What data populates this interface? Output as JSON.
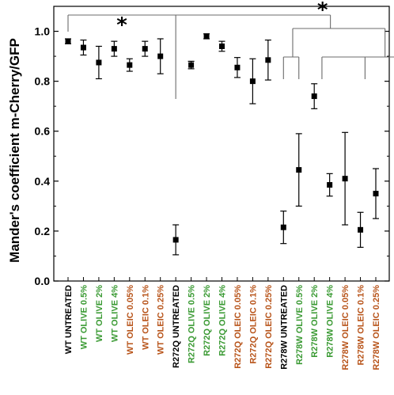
{
  "chart_data": {
    "type": "scatter",
    "ylabel": "Mander's coefficient m-Cherry/GFP",
    "ylim": [
      0,
      1.1
    ],
    "yticks": [
      "0.0",
      "0.2",
      "0.4",
      "0.6",
      "0.8",
      "1.0"
    ],
    "categories": [
      "WT UNTREATED",
      "WT OLIVE 0.5%",
      "WT OLIVE 2%",
      "WT OLIVE 4%",
      "WT OLEIC 0.05%",
      "WT OLEIC 0.1%",
      "WT OLEIC 0.25%",
      "R272Q UNTREATED",
      "R272Q OLIVE 0.5%",
      "R272Q OLIVE 2%",
      "R272Q OLIVE 4%",
      "R272Q OLEIC 0.05%",
      "R272Q OLEIC 0.1%",
      "R272Q OLEIC 0.25%",
      "R278W UNTREATED",
      "R278W OLIVE 0.5%",
      "R278W OLIVE 2%",
      "R278W OLIVE 4%",
      "R278W OLEIC 0.05%",
      "R278W OLEIC 0.1%",
      "R278W OLEIC 0.25%"
    ],
    "label_colors": [
      "#000000",
      "#3a9a33",
      "#3a9a33",
      "#3a9a33",
      "#b8541a",
      "#b8541a",
      "#b8541a",
      "#000000",
      "#3a9a33",
      "#3a9a33",
      "#3a9a33",
      "#b8541a",
      "#b8541a",
      "#b8541a",
      "#000000",
      "#3a9a33",
      "#3a9a33",
      "#3a9a33",
      "#b8541a",
      "#b8541a",
      "#b8541a"
    ],
    "values": [
      0.96,
      0.935,
      0.875,
      0.93,
      0.865,
      0.93,
      0.9,
      0.165,
      0.865,
      0.98,
      0.94,
      0.855,
      0.8,
      0.885,
      0.215,
      0.445,
      0.74,
      0.385,
      0.41,
      0.205,
      0.35
    ],
    "errors": [
      0.01,
      0.03,
      0.065,
      0.03,
      0.025,
      0.03,
      0.07,
      0.06,
      0.015,
      0.01,
      0.02,
      0.04,
      0.09,
      0.08,
      0.065,
      0.145,
      0.05,
      0.045,
      0.185,
      0.07,
      0.1
    ],
    "significance_marker": "*",
    "grid": false,
    "marker_color": "#000000"
  }
}
